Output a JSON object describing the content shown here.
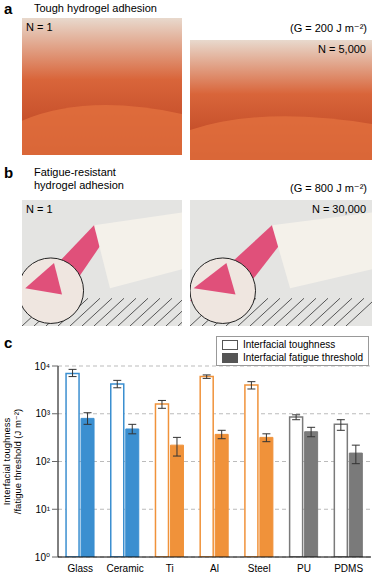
{
  "panels": [
    {
      "label": "a",
      "title": [
        "Tough hydrogel adhesion"
      ],
      "annotation": "(G = 200 J m⁻²)",
      "frames": [
        "N = 1",
        "N = 5,000"
      ]
    },
    {
      "label": "b",
      "title": [
        "Fatigue-resistant",
        "hydrogel adhesion"
      ],
      "annotation": "(G = 800 J m⁻²)",
      "frames": [
        "N = 1",
        "N = 30,000"
      ]
    },
    {
      "label": "c"
    }
  ],
  "chart_data": {
    "type": "bar",
    "ylabel": [
      "Interfacial toughness",
      "/fatigue threshold (J m⁻²)"
    ],
    "categories": [
      "Glass",
      "Ceramic",
      "Ti",
      "Al",
      "Steel",
      "PU",
      "PDMS"
    ],
    "colors": [
      "#3b8fd0",
      "#3b8fd0",
      "#f0923a",
      "#f0923a",
      "#f0923a",
      "#7a7a7a",
      "#7a7a7a"
    ],
    "log": "y",
    "ylim": [
      1,
      10000
    ],
    "yticks": [
      {
        "value": 1,
        "label": "10⁰"
      },
      {
        "value": 10,
        "label": "10¹"
      },
      {
        "value": 100,
        "label": "10²"
      },
      {
        "value": 1000,
        "label": "10³"
      },
      {
        "value": 10000,
        "label": "10⁴"
      }
    ],
    "grid": true,
    "legend": "upper right",
    "series": [
      {
        "name": "Interfacial toughness",
        "color": "#ffffff",
        "values": [
          7000,
          4200,
          1600,
          6000,
          4000,
          850,
          600
        ],
        "errors": [
          [
            1000,
            1500
          ],
          [
            700,
            800
          ],
          [
            300,
            300
          ],
          [
            500,
            500
          ],
          [
            700,
            700
          ],
          [
            100,
            100
          ],
          [
            150,
            150
          ]
        ]
      },
      {
        "name": "Interfacial fatigue threshold",
        "color": "#555555",
        "values": [
          800,
          480,
          220,
          370,
          320,
          420,
          150
        ],
        "errors": [
          [
            200,
            250
          ],
          [
            100,
            120
          ],
          [
            90,
            100
          ],
          [
            70,
            80
          ],
          [
            60,
            60
          ],
          [
            90,
            100
          ],
          [
            60,
            70
          ]
        ]
      }
    ]
  }
}
